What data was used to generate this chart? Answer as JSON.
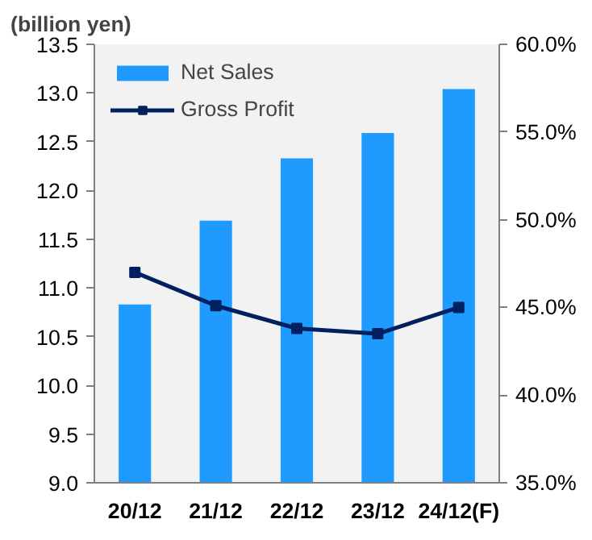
{
  "chart_data": {
    "type": "bar",
    "ylabel": "(billion yen)",
    "categories": [
      "20/12",
      "21/12",
      "22/12",
      "23/12",
      "24/12(F)"
    ],
    "series": [
      {
        "name": "Net Sales",
        "color": "#1f9bff",
        "values": [
          10.83,
          11.69,
          12.33,
          12.59,
          13.04
        ]
      },
      {
        "name": "Gross Profit",
        "type": "line",
        "axis": "y2",
        "color": "#002060",
        "marker": "square",
        "values": [
          47.0,
          45.1,
          43.8,
          43.5,
          45.0
        ]
      }
    ],
    "ylim": [
      9.0,
      13.5
    ],
    "yticks": [
      {
        "value": 9.0,
        "label": "9.0"
      },
      {
        "value": 9.5,
        "label": "9.5"
      },
      {
        "value": 10.0,
        "label": "10.0"
      },
      {
        "value": 10.5,
        "label": "10.5"
      },
      {
        "value": 11.0,
        "label": "11.0"
      },
      {
        "value": 11.5,
        "label": "11.5"
      },
      {
        "value": 12.0,
        "label": "12.0"
      },
      {
        "value": 12.5,
        "label": "12.5"
      },
      {
        "value": 13.0,
        "label": "13.0"
      },
      {
        "value": 13.5,
        "label": "13.5"
      }
    ],
    "y2lim": [
      35.0,
      60.0
    ],
    "y2ticks": [
      {
        "value": 35.0,
        "label": "35.0%"
      },
      {
        "value": 40.0,
        "label": "40.0%"
      },
      {
        "value": 45.0,
        "label": "45.0%"
      },
      {
        "value": 50.0,
        "label": "50.0%"
      },
      {
        "value": 55.0,
        "label": "55.0%"
      },
      {
        "value": 60.0,
        "label": "60.0%"
      }
    ],
    "grid": false,
    "legend": "top left"
  }
}
